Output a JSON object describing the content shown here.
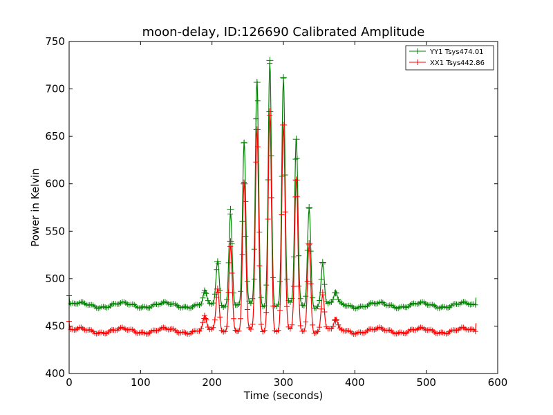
{
  "chart_data": {
    "type": "line",
    "title": "moon-delay, ID:126690 Calibrated Amplitude",
    "xlabel": "Time (seconds)",
    "ylabel": "Power in Kelvin",
    "xlim": [
      0,
      600
    ],
    "ylim": [
      400,
      750
    ],
    "xticks": [
      "0",
      "100",
      "200",
      "300",
      "400",
      "500",
      "600"
    ],
    "yticks": [
      "400",
      "450",
      "500",
      "550",
      "600",
      "650",
      "700",
      "750"
    ],
    "grid": false,
    "legend_position": "top-right",
    "colors": {
      "YY1": "#008000",
      "XX1": "#ff0000"
    },
    "series": [
      {
        "name": "YY1 Tsys474.01",
        "color": "#008000",
        "baseline": 472,
        "x_range": [
          0,
          570
        ],
        "peaks": [
          {
            "x": 190,
            "y": 485
          },
          {
            "x": 208,
            "y": 518
          },
          {
            "x": 226,
            "y": 573
          },
          {
            "x": 245,
            "y": 643
          },
          {
            "x": 263,
            "y": 707
          },
          {
            "x": 281,
            "y": 730
          },
          {
            "x": 300,
            "y": 712
          },
          {
            "x": 318,
            "y": 647
          },
          {
            "x": 336,
            "y": 575
          },
          {
            "x": 355,
            "y": 517
          },
          {
            "x": 373,
            "y": 485
          }
        ]
      },
      {
        "name": "XX1 Tsys442.86",
        "color": "#ff0000",
        "baseline": 445,
        "x_range": [
          0,
          570
        ],
        "peaks": [
          {
            "x": 190,
            "y": 458
          },
          {
            "x": 208,
            "y": 489
          },
          {
            "x": 226,
            "y": 539
          },
          {
            "x": 245,
            "y": 600
          },
          {
            "x": 263,
            "y": 657
          },
          {
            "x": 281,
            "y": 676
          },
          {
            "x": 300,
            "y": 662
          },
          {
            "x": 318,
            "y": 604
          },
          {
            "x": 336,
            "y": 537
          },
          {
            "x": 355,
            "y": 485
          },
          {
            "x": 373,
            "y": 456
          }
        ]
      }
    ]
  }
}
